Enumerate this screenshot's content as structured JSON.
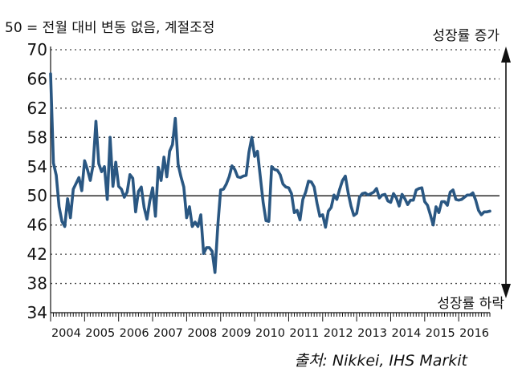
{
  "chart_data": {
    "type": "line",
    "subtitle": "50 = 전월 대비 변동 없음, 계절조정",
    "annotation_top": "성장률 증가",
    "annotation_bottom": "성장률 하락",
    "source": "출처: Nikkei, IHS Markit",
    "ylim": [
      34,
      70
    ],
    "yticks": [
      34,
      38,
      42,
      46,
      50,
      54,
      58,
      62,
      66,
      70
    ],
    "reference_line": 50,
    "grid": "horizontal dotted",
    "xlabels": [
      "2004",
      "2005",
      "2006",
      "2007",
      "2008",
      "2009",
      "2010",
      "2011",
      "2012",
      "2013",
      "2014",
      "2015",
      "2016"
    ],
    "x_start": "2004-01",
    "series": [
      {
        "color": "#2a5782",
        "values": [
          66.7,
          54.5,
          52.8,
          48.5,
          46.5,
          45.8,
          49.6,
          47.0,
          50.9,
          51.7,
          52.5,
          50.7,
          54.8,
          53.6,
          52.1,
          54.2,
          60.2,
          54.4,
          53.3,
          54.0,
          49.5,
          58.0,
          51.3,
          54.6,
          51.3,
          50.9,
          49.8,
          50.5,
          52.9,
          52.4,
          47.8,
          50.6,
          51.2,
          48.4,
          46.8,
          49.3,
          51.1,
          47.2,
          53.9,
          52.1,
          55.3,
          52.6,
          56.1,
          57.0,
          60.6,
          54.3,
          52.6,
          51.2,
          47.0,
          48.5,
          45.8,
          46.4,
          45.8,
          47.4,
          42.1,
          42.9,
          42.9,
          42.4,
          39.5,
          45.9,
          50.8,
          50.9,
          51.6,
          52.6,
          54.1,
          53.6,
          52.6,
          52.5,
          52.7,
          52.8,
          56.0,
          58.0,
          55.4,
          56.1,
          52.6,
          49.1,
          46.6,
          46.5,
          54.0,
          53.6,
          53.5,
          52.9,
          51.6,
          51.2,
          51.1,
          50.3,
          47.7,
          48.0,
          46.7,
          49.5,
          50.5,
          52.0,
          51.9,
          51.2,
          49.0,
          47.2,
          47.4,
          45.7,
          47.9,
          48.4,
          50.1,
          49.5,
          50.9,
          52.1,
          52.7,
          50.4,
          48.6,
          47.3,
          47.6,
          49.8,
          50.3,
          50.4,
          50.1,
          50.3,
          50.5,
          51.0,
          49.7,
          50.1,
          50.2,
          49.3,
          49.1,
          50.3,
          49.7,
          48.6,
          50.2,
          49.6,
          48.8,
          49.4,
          49.4,
          50.8,
          51.0,
          51.1,
          49.2,
          48.7,
          47.4,
          46.0,
          48.5,
          47.7,
          49.2,
          49.2,
          48.7,
          50.5,
          50.8,
          49.5,
          49.4,
          49.5,
          49.8,
          50.1,
          50.1,
          50.4,
          49.4,
          48.0,
          47.4,
          47.8,
          47.8,
          47.9
        ]
      }
    ]
  }
}
